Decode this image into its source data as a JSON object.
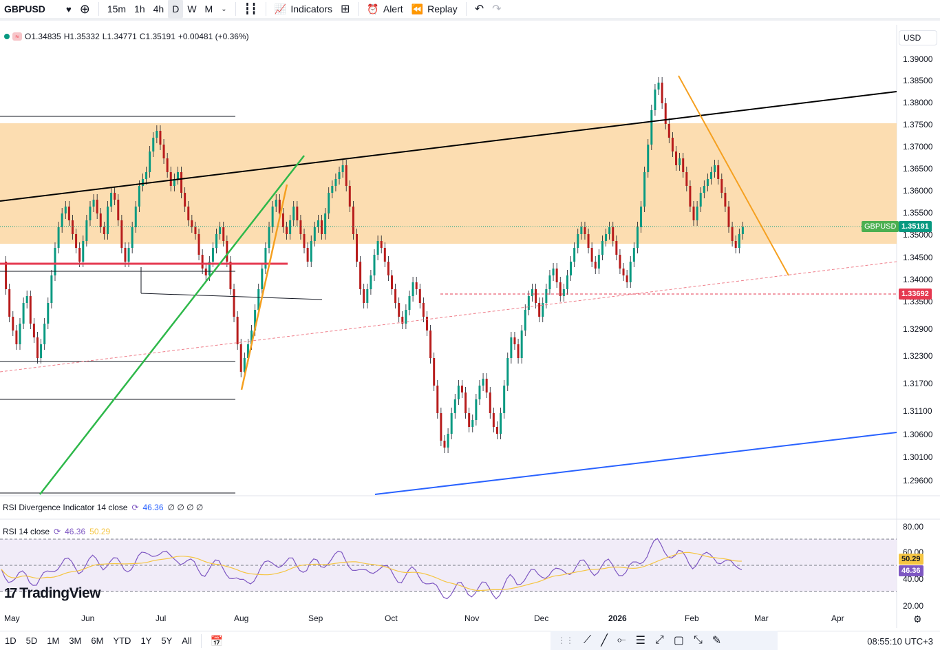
{
  "toolbar": {
    "symbol": "GBPUSD",
    "timeframes": [
      "15m",
      "1h",
      "4h",
      "D",
      "W",
      "M"
    ],
    "active_timeframe": "D",
    "indicators_label": "Indicators",
    "alert_label": "Alert",
    "replay_label": "Replay"
  },
  "legend": {
    "open": "O1.34835",
    "high": "H1.35332",
    "low": "L1.34771",
    "close": "C1.35191",
    "change": "+0.00481 (+0.36%)"
  },
  "currency": "USD",
  "price_axis": [
    "1.39000",
    "1.38500",
    "1.38000",
    "1.37500",
    "1.37000",
    "1.36500",
    "1.36000",
    "1.35500",
    "1.35000",
    "1.34500",
    "1.34000",
    "1.33500",
    "1.32900",
    "1.32300",
    "1.31700",
    "1.31100",
    "1.30600",
    "1.30100",
    "1.29600"
  ],
  "price_tags": {
    "symbol_label": "GBPUSD",
    "last_price": "1.35191",
    "line_price": "1.33692"
  },
  "rsi_div": {
    "label": "RSI Divergence Indicator 14 close",
    "value": "46.36",
    "extras": "∅ ∅ ∅ ∅"
  },
  "rsi": {
    "label": "RSI 14 close",
    "value": "46.36",
    "ma": "50.29",
    "axis": [
      "80.00",
      "60.00",
      "40.00",
      "20.00"
    ]
  },
  "time_axis": {
    "months": [
      "May",
      "Jun",
      "Jul",
      "Aug",
      "Sep",
      "Oct",
      "Nov",
      "Dec",
      "2026",
      "Feb",
      "Mar",
      "Apr"
    ]
  },
  "ranges": [
    "1D",
    "5D",
    "1M",
    "3M",
    "6M",
    "YTD",
    "1Y",
    "5Y",
    "All"
  ],
  "clock": "08:55:10 UTC+3",
  "logo": "TradingView",
  "colors": {
    "up": "#089981",
    "down": "#b71c1c",
    "zone": "#fcd9a8",
    "rsi_line": "#7e57c2",
    "rsi_ma": "#f5c542"
  }
}
